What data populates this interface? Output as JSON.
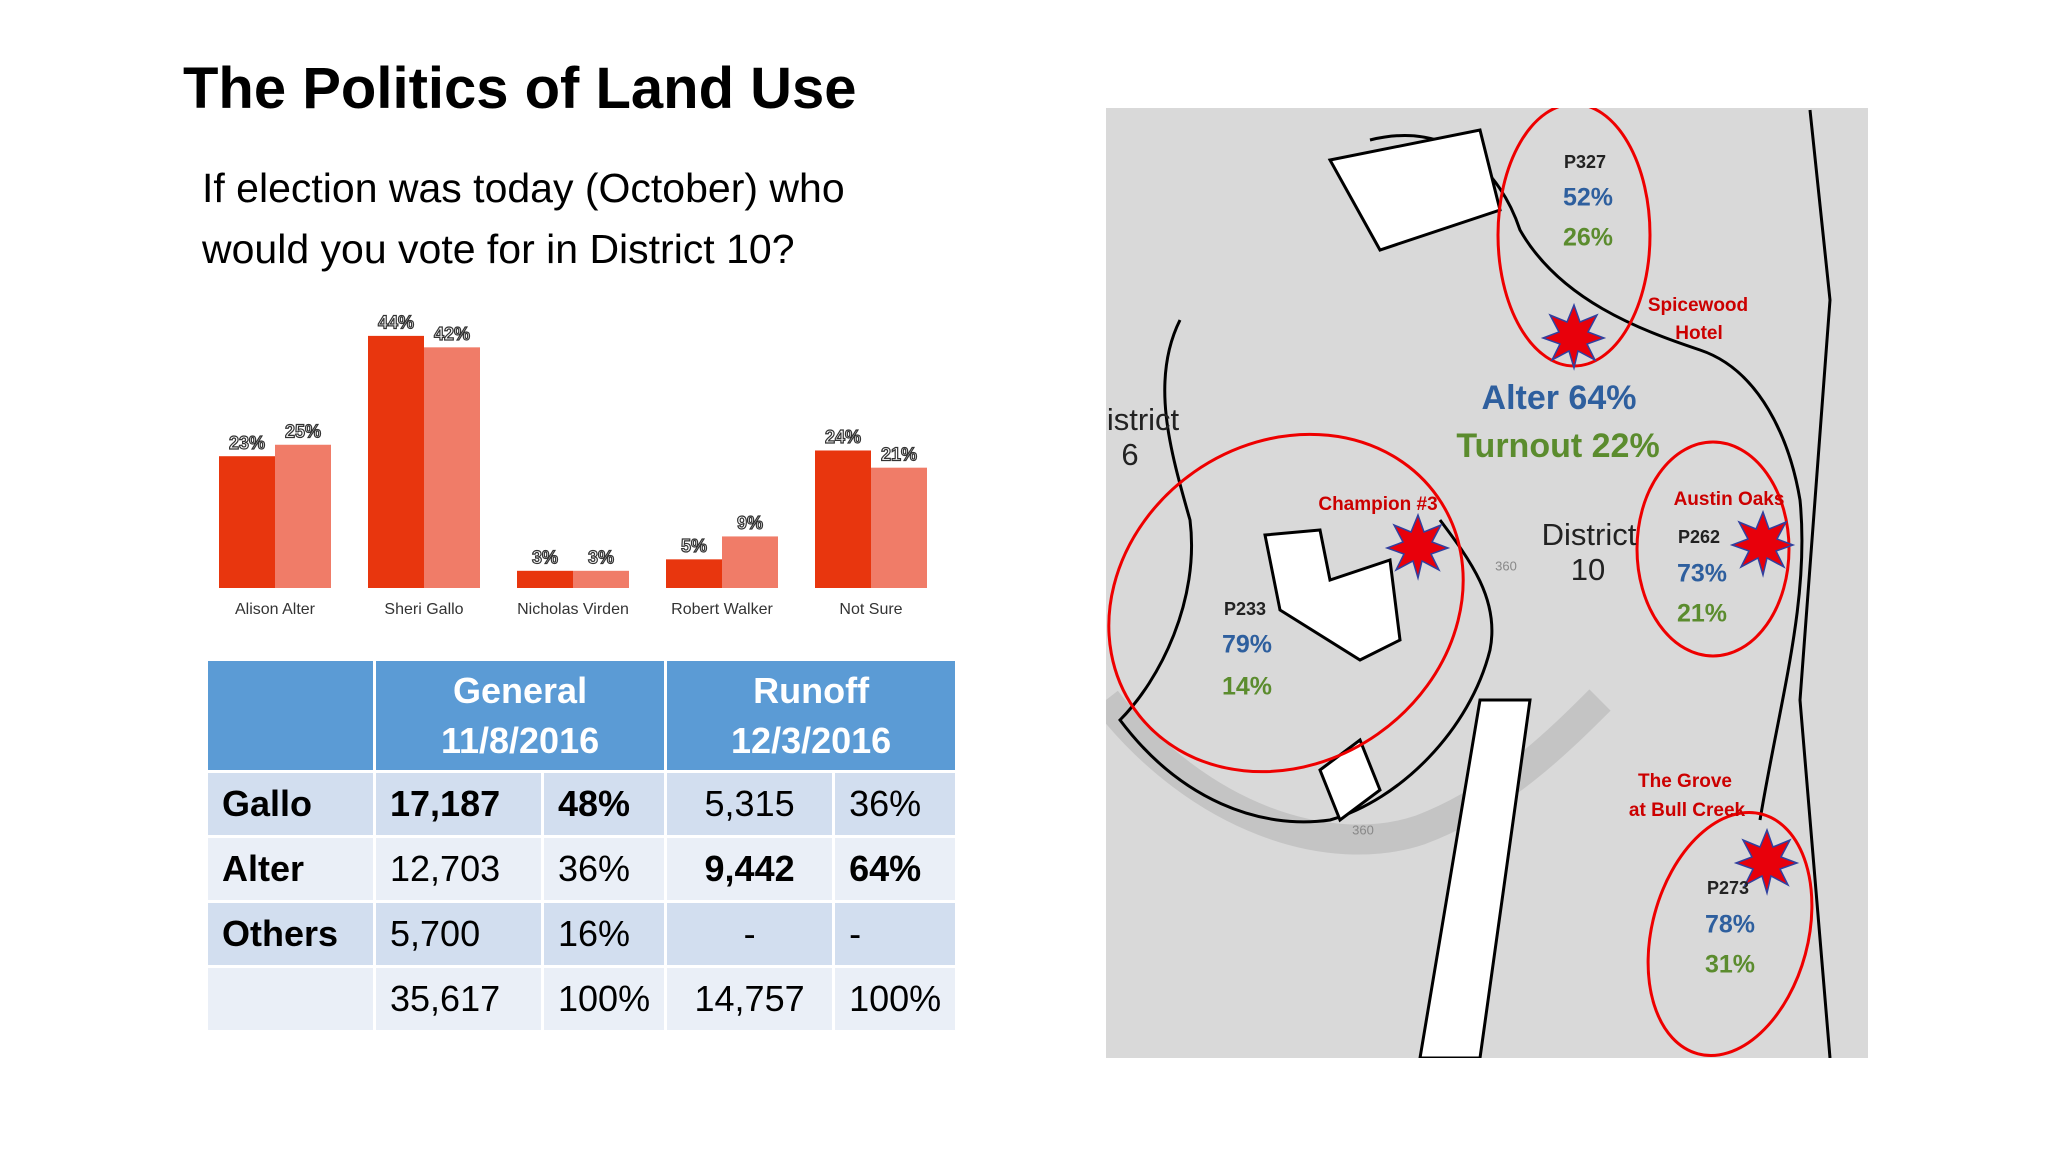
{
  "header": {
    "title": "The Politics of Land Use",
    "subtitle": [
      "If election was today (October) who",
      "would you vote for in District 10?"
    ]
  },
  "chart_data": {
    "type": "bar",
    "categories": [
      "Alison Alter",
      "Sheri Gallo",
      "Nicholas Virden",
      "Robert Walker",
      "Not Sure"
    ],
    "series": [
      {
        "color": "#e8360e",
        "values": [
          23,
          44,
          3,
          5,
          24
        ],
        "value_labels": [
          "23%",
          "44%",
          "3%",
          "5%",
          "24%"
        ]
      },
      {
        "color": "#f07c68",
        "values": [
          25,
          42,
          3,
          9,
          21
        ],
        "value_labels": [
          "25%",
          "42%",
          "3%",
          "9%",
          "21%"
        ]
      }
    ]
  },
  "table": {
    "columns": [
      {
        "label": "General",
        "date": "11/8/2016"
      },
      {
        "label": "Runoff",
        "date": "12/3/2016"
      }
    ],
    "rows": [
      [
        "Gallo",
        "17,187",
        "48%",
        "5,315",
        "36%"
      ],
      [
        "Alter",
        "12,703",
        "36%",
        "9,442",
        "64%"
      ],
      [
        "Others",
        "5,700",
        "16%",
        "-",
        "-"
      ]
    ],
    "totals": [
      "35,617",
      "100%",
      "14,757",
      "100%"
    ]
  },
  "map": {
    "district_left": [
      "istrict",
      "6"
    ],
    "district": [
      "District",
      "10"
    ],
    "summary": [
      "Alter 64%",
      "Turnout 22%"
    ],
    "highways": [
      "360",
      "360"
    ],
    "precincts": [
      {
        "id": "P327",
        "values": [
          "52%",
          "26%"
        ]
      },
      {
        "id": "P233",
        "values": [
          "79%",
          "14%"
        ]
      },
      {
        "id": "P262",
        "values": [
          "73%",
          "21%"
        ]
      },
      {
        "id": "P273",
        "values": [
          "78%",
          "31%"
        ]
      }
    ],
    "sites": [
      [
        "Spicewood",
        "Hotel"
      ],
      [
        "Champion #3"
      ],
      [
        "Austin Oaks"
      ],
      [
        "The Grove",
        "at Bull Creek"
      ]
    ]
  }
}
